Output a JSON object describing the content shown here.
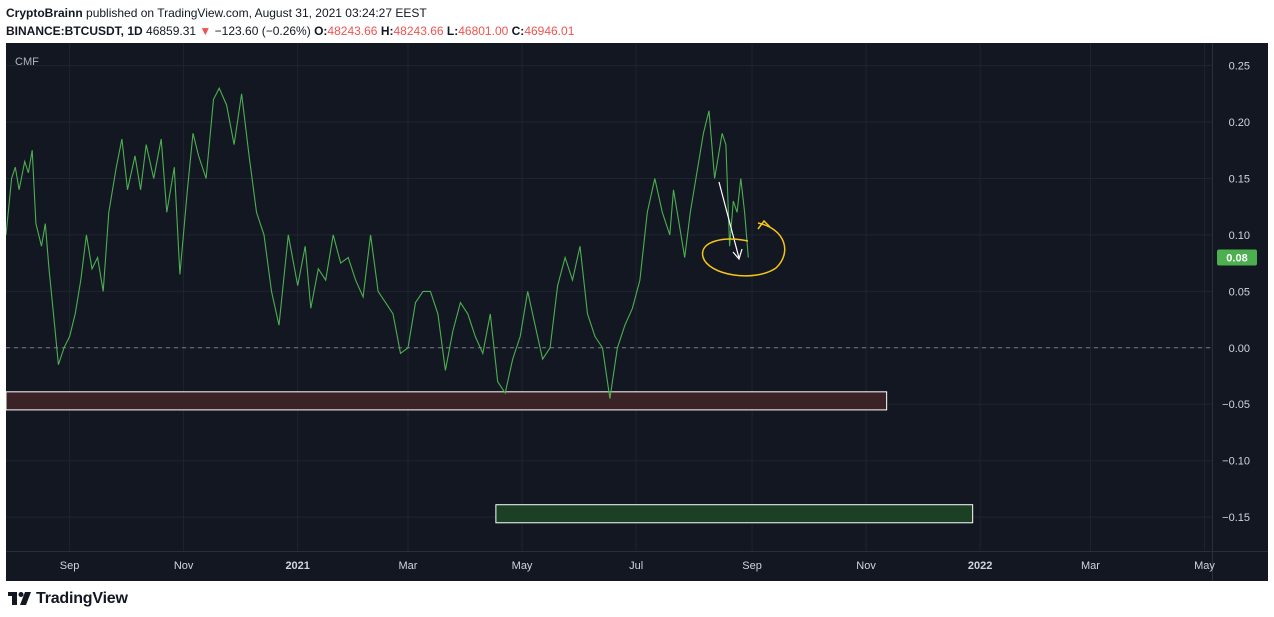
{
  "header": {
    "author": "CryptoBrainn",
    "published_text": "published on TradingView.com, August 31, 2021 03:24:27 EEST",
    "symbol": "BINANCE:BTCUSDT, 1D",
    "price": "46859.31",
    "change_arrow": "▼",
    "change": "−123.60 (−0.26%)",
    "open_label": "O:",
    "open": "48243.66",
    "high_label": "H:",
    "high": "48243.66",
    "low_label": "L:",
    "low": "46801.00",
    "close_label": "C:",
    "close": "46946.01"
  },
  "footer": {
    "brand": "TradingView"
  },
  "colors": {
    "background": "#131722",
    "line": "#4caf50",
    "last_value_badge": "#4caf50",
    "red_zone_fill": "#3b2226",
    "green_zone_fill": "#1b4024",
    "zone_border": "#ffffff",
    "arrow": "#ffffff",
    "annotation": "#f5c518"
  },
  "chart_data": {
    "type": "line",
    "indicator_label": "CMF",
    "last_value_label": "0.08",
    "grid": true,
    "ylim": [
      -0.18,
      0.27
    ],
    "y_ticks": [
      "0.25",
      "0.20",
      "0.15",
      "0.10",
      "0.05",
      "0.00",
      "−0.05",
      "−0.10",
      "−0.15"
    ],
    "y_tick_values": [
      0.25,
      0.2,
      0.15,
      0.1,
      0.05,
      0.0,
      -0.05,
      -0.1,
      -0.15
    ],
    "x_tick_labels": [
      "Sep",
      "Nov",
      "2021",
      "Mar",
      "May",
      "Jul",
      "Sep",
      "Nov",
      "2022",
      "Mar",
      "May"
    ],
    "x_tick_dates": [
      "2020-09-01",
      "2020-11-01",
      "2021-01-01",
      "2021-03-01",
      "2021-05-01",
      "2021-07-01",
      "2021-09-01",
      "2021-11-01",
      "2022-01-01",
      "2022-03-01",
      "2022-05-01"
    ],
    "x_range": [
      "2020-07-29",
      "2022-05-05"
    ],
    "zero_line": 0.0,
    "series": [
      {
        "x": [
          "2020-07-29",
          "2020-08-01",
          "2020-08-03",
          "2020-08-05",
          "2020-08-08",
          "2020-08-10",
          "2020-08-12",
          "2020-08-14",
          "2020-08-17",
          "2020-08-19",
          "2020-08-21",
          "2020-08-24",
          "2020-08-26",
          "2020-08-29",
          "2020-09-01",
          "2020-09-04",
          "2020-09-07",
          "2020-09-10",
          "2020-09-13",
          "2020-09-16",
          "2020-09-19",
          "2020-09-22",
          "2020-09-26",
          "2020-09-29",
          "2020-10-02",
          "2020-10-06",
          "2020-10-09",
          "2020-10-12",
          "2020-10-16",
          "2020-10-20",
          "2020-10-23",
          "2020-10-27",
          "2020-10-30",
          "2020-11-03",
          "2020-11-06",
          "2020-11-09",
          "2020-11-13",
          "2020-11-17",
          "2020-11-20",
          "2020-11-24",
          "2020-11-28",
          "2020-12-02",
          "2020-12-06",
          "2020-12-10",
          "2020-12-14",
          "2020-12-18",
          "2020-12-22",
          "2020-12-27",
          "2021-01-01",
          "2021-01-05",
          "2021-01-08",
          "2021-01-12",
          "2021-01-16",
          "2021-01-20",
          "2021-01-24",
          "2021-01-28",
          "2021-02-01",
          "2021-02-05",
          "2021-02-09",
          "2021-02-13",
          "2021-02-17",
          "2021-02-21",
          "2021-02-25",
          "2021-03-01",
          "2021-03-05",
          "2021-03-09",
          "2021-03-13",
          "2021-03-17",
          "2021-03-21",
          "2021-03-25",
          "2021-03-29",
          "2021-04-02",
          "2021-04-06",
          "2021-04-10",
          "2021-04-14",
          "2021-04-18",
          "2021-04-22",
          "2021-04-26",
          "2021-04-30",
          "2021-05-04",
          "2021-05-08",
          "2021-05-12",
          "2021-05-16",
          "2021-05-20",
          "2021-05-24",
          "2021-05-28",
          "2021-06-01",
          "2021-06-05",
          "2021-06-09",
          "2021-06-13",
          "2021-06-17",
          "2021-06-21",
          "2021-06-25",
          "2021-06-29",
          "2021-07-03",
          "2021-07-07",
          "2021-07-11",
          "2021-07-15",
          "2021-07-19",
          "2021-07-21",
          "2021-07-24",
          "2021-07-27",
          "2021-07-30",
          "2021-08-03",
          "2021-08-06",
          "2021-08-09",
          "2021-08-12",
          "2021-08-14",
          "2021-08-16",
          "2021-08-18",
          "2021-08-20",
          "2021-08-22",
          "2021-08-24",
          "2021-08-26",
          "2021-08-28",
          "2021-08-30"
        ],
        "y": [
          0.1,
          0.15,
          0.16,
          0.14,
          0.165,
          0.155,
          0.175,
          0.11,
          0.09,
          0.11,
          0.07,
          0.02,
          -0.015,
          0.0,
          0.01,
          0.03,
          0.06,
          0.1,
          0.07,
          0.08,
          0.05,
          0.12,
          0.16,
          0.185,
          0.14,
          0.17,
          0.14,
          0.18,
          0.15,
          0.185,
          0.12,
          0.16,
          0.065,
          0.14,
          0.19,
          0.17,
          0.15,
          0.22,
          0.23,
          0.215,
          0.18,
          0.225,
          0.17,
          0.12,
          0.1,
          0.05,
          0.02,
          0.1,
          0.055,
          0.09,
          0.035,
          0.07,
          0.06,
          0.1,
          0.075,
          0.08,
          0.06,
          0.045,
          0.1,
          0.05,
          0.04,
          0.03,
          -0.005,
          0.0,
          0.04,
          0.05,
          0.05,
          0.03,
          -0.02,
          0.015,
          0.04,
          0.03,
          0.01,
          -0.005,
          0.03,
          -0.03,
          -0.04,
          -0.01,
          0.01,
          0.05,
          0.02,
          -0.01,
          0.0,
          0.055,
          0.08,
          0.06,
          0.09,
          0.03,
          0.01,
          0.0,
          -0.045,
          0.0,
          0.02,
          0.035,
          0.06,
          0.12,
          0.15,
          0.12,
          0.1,
          0.14,
          0.11,
          0.08,
          0.12,
          0.16,
          0.19,
          0.21,
          0.15,
          0.17,
          0.19,
          0.18,
          0.09,
          0.13,
          0.12,
          0.15,
          0.12,
          0.08
        ]
      }
    ],
    "annotations": [
      {
        "type": "rectangle",
        "fill": "#3b2226",
        "y_range": [
          -0.055,
          -0.039
        ],
        "x_range": [
          "2020-07-29",
          "2021-11-12"
        ]
      },
      {
        "type": "rectangle",
        "fill": "#1b4024",
        "y_range": [
          -0.155,
          -0.139
        ],
        "x_range": [
          "2021-04-17",
          "2021-12-28"
        ]
      }
    ]
  }
}
